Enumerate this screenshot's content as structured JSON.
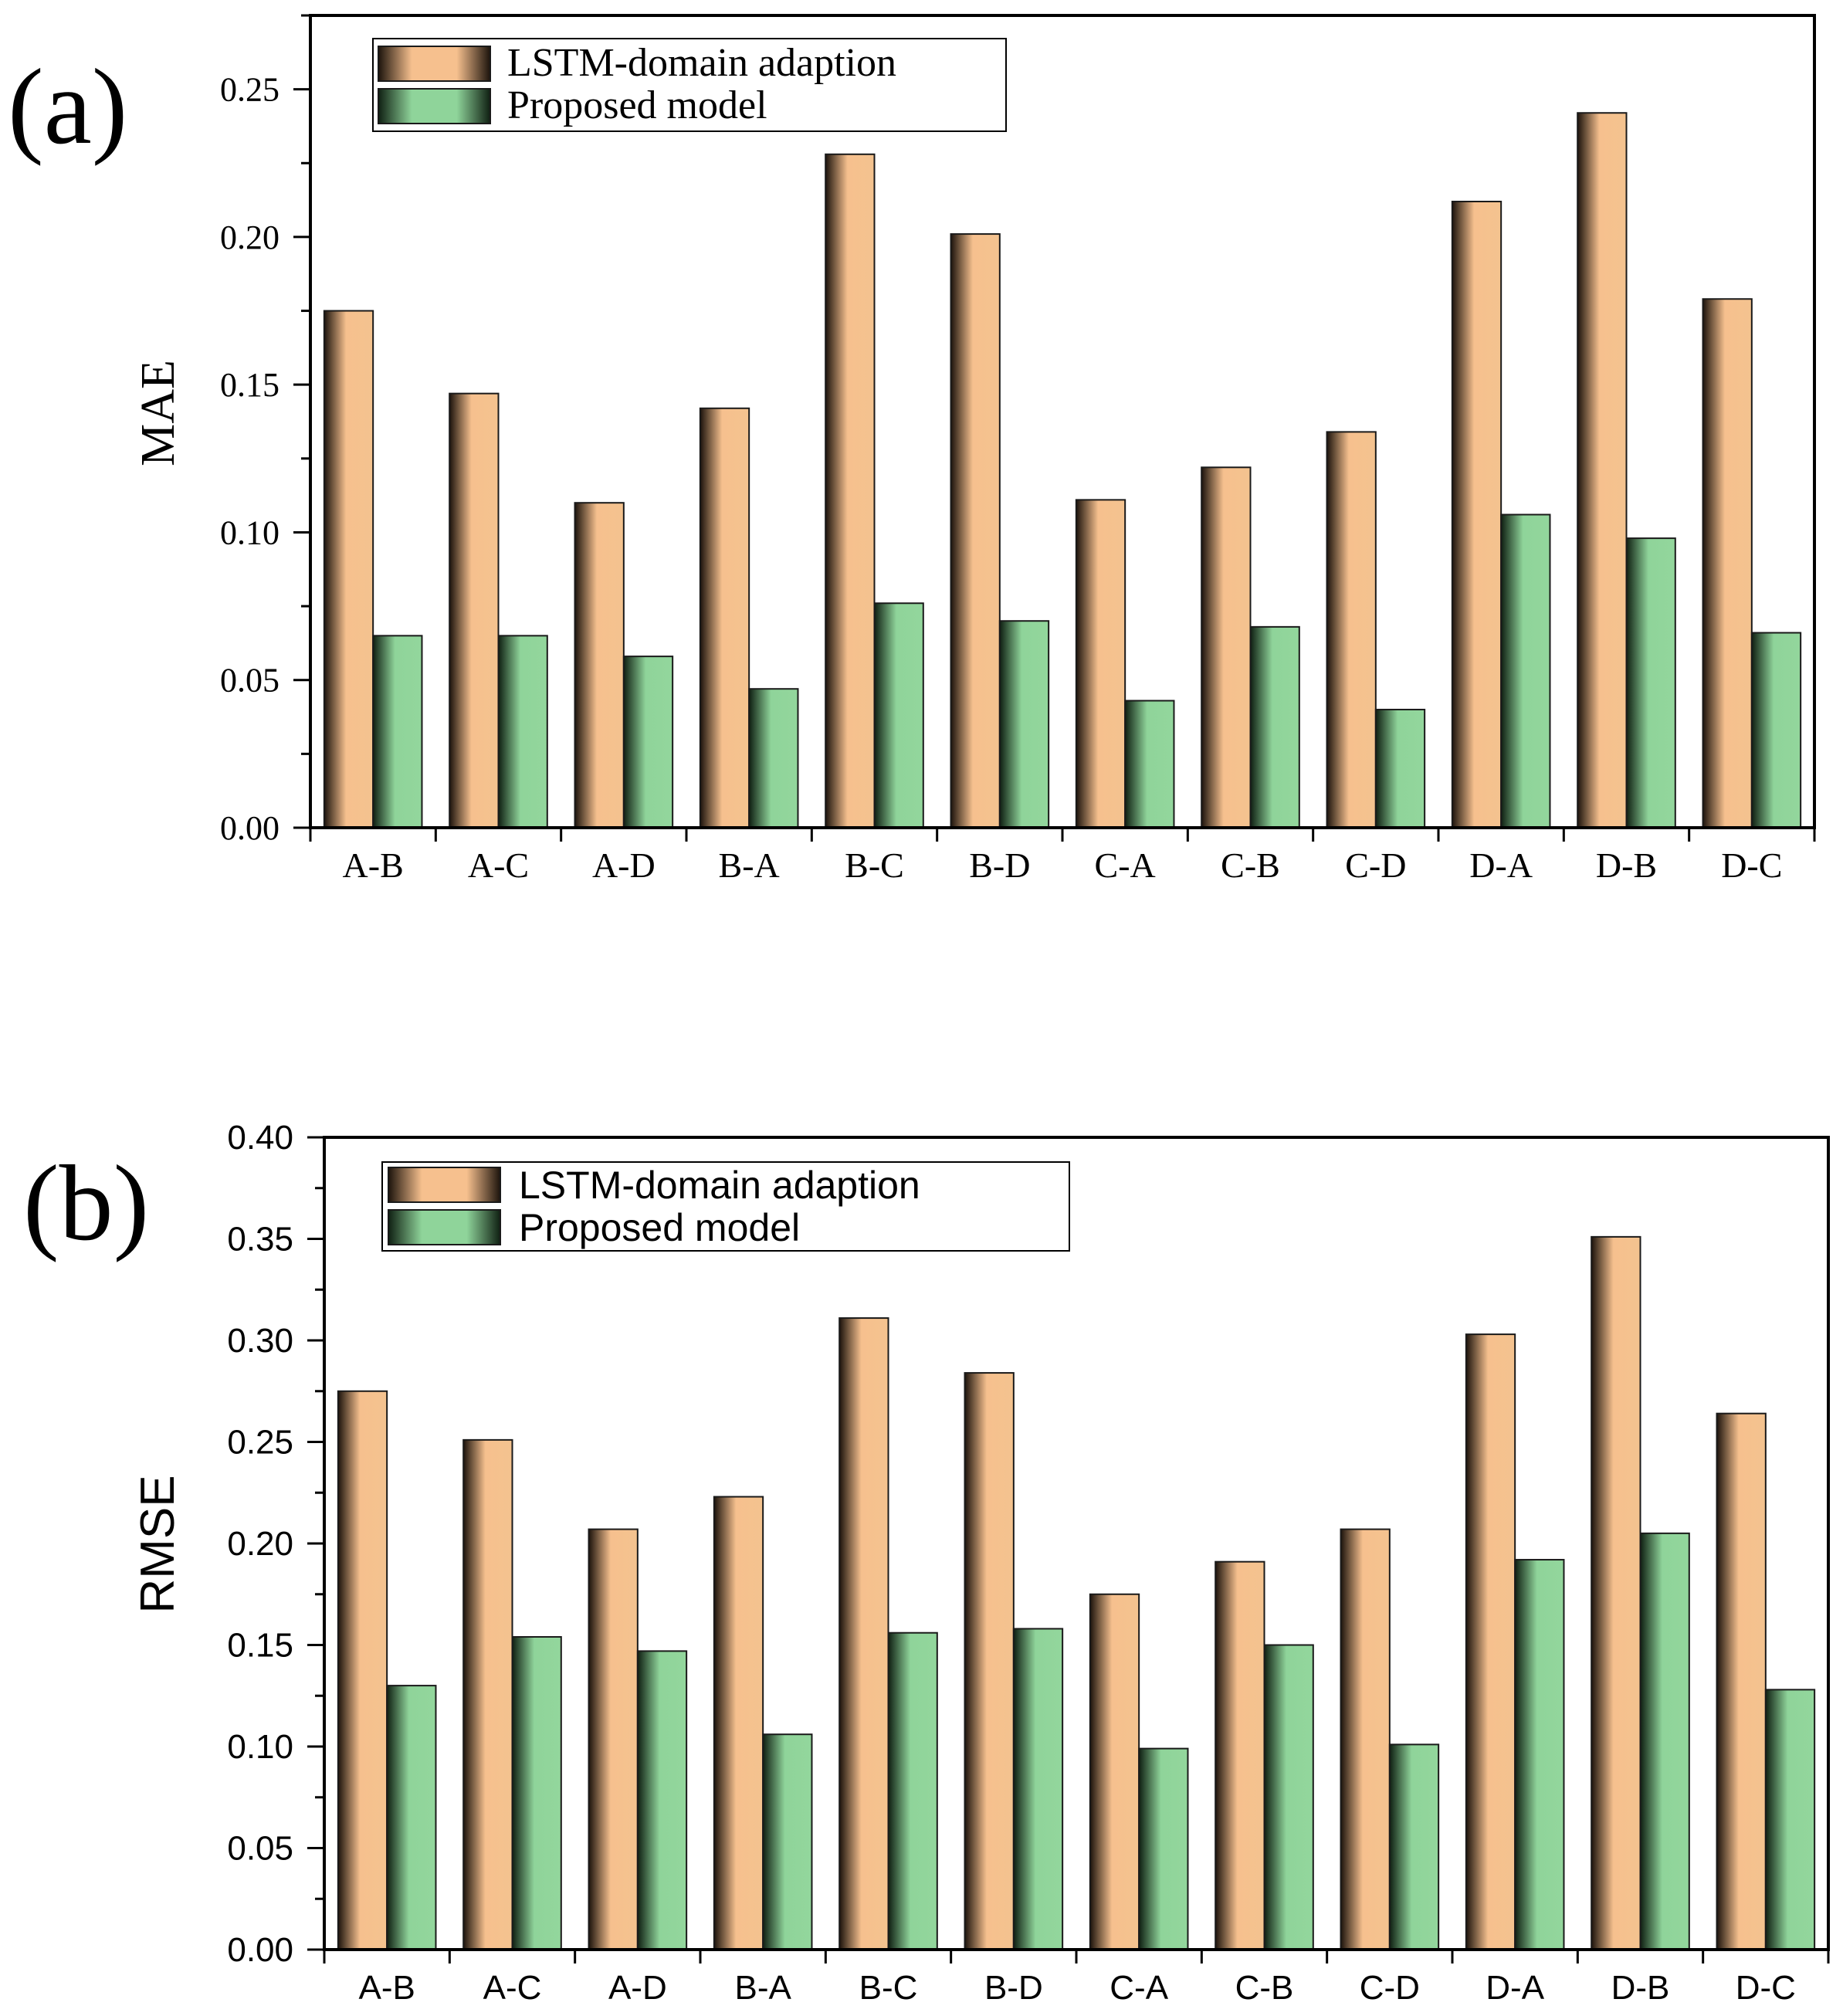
{
  "chart_data": [
    {
      "type": "bar",
      "panel_label": "(a)",
      "title": "",
      "xlabel": "",
      "ylabel": "MAE",
      "ylim": [
        0,
        0.275
      ],
      "yticks": [
        "0.00",
        "0.05",
        "0.10",
        "0.15",
        "0.20",
        "0.25"
      ],
      "categories": [
        "A-B",
        "A-C",
        "A-D",
        "B-A",
        "B-C",
        "B-D",
        "C-A",
        "C-B",
        "C-D",
        "D-A",
        "D-B",
        "D-C"
      ],
      "legend_position": "top-left",
      "series": [
        {
          "name": "LSTM-domain adaption",
          "color": "#f4c08e",
          "values": [
            0.175,
            0.147,
            0.11,
            0.142,
            0.228,
            0.201,
            0.111,
            0.122,
            0.134,
            0.212,
            0.242,
            0.179
          ]
        },
        {
          "name": "Proposed model",
          "color": "#8fd49a",
          "values": [
            0.065,
            0.065,
            0.058,
            0.047,
            0.076,
            0.07,
            0.043,
            0.068,
            0.04,
            0.106,
            0.098,
            0.066
          ]
        }
      ]
    },
    {
      "type": "bar",
      "panel_label": "(b)",
      "title": "",
      "xlabel": "",
      "ylabel": "RMSE",
      "ylim": [
        0,
        0.4
      ],
      "yticks": [
        "0.00",
        "0.05",
        "0.10",
        "0.15",
        "0.20",
        "0.25",
        "0.30",
        "0.35",
        "0.40"
      ],
      "categories": [
        "A-B",
        "A-C",
        "A-D",
        "B-A",
        "B-C",
        "B-D",
        "C-A",
        "C-B",
        "C-D",
        "D-A",
        "D-B",
        "D-C"
      ],
      "legend_position": "top-left",
      "series": [
        {
          "name": "LSTM-domain adaption",
          "color": "#f4c08e",
          "values": [
            0.275,
            0.251,
            0.207,
            0.223,
            0.311,
            0.284,
            0.175,
            0.191,
            0.207,
            0.303,
            0.351,
            0.264
          ]
        },
        {
          "name": "Proposed model",
          "color": "#8fd49a",
          "values": [
            0.13,
            0.154,
            0.147,
            0.106,
            0.156,
            0.158,
            0.099,
            0.15,
            0.101,
            0.192,
            0.205,
            0.128
          ]
        }
      ]
    }
  ]
}
